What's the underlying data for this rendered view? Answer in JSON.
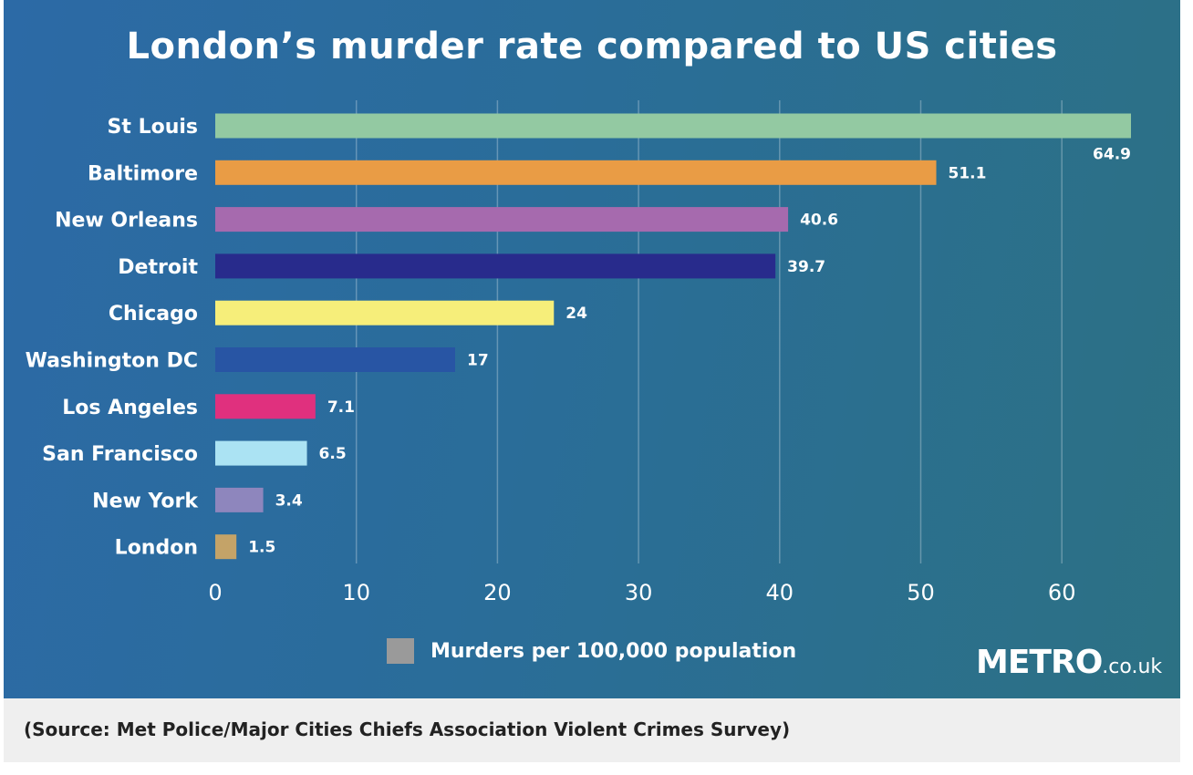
{
  "colors": {
    "background_start": "#2c6aa6",
    "background_end": "#2c7184",
    "text": "#ffffff",
    "legend_swatch": "#9a9a9a",
    "caption_background": "#efefef"
  },
  "chart_data": {
    "type": "bar",
    "orientation": "horizontal",
    "title": "London’s murder rate compared to US cities",
    "categories": [
      "St Louis",
      "Baltimore",
      "New Orleans",
      "Detroit",
      "Chicago",
      "Washington DC",
      "Los Angeles",
      "San Francisco",
      "New York",
      "London"
    ],
    "values": [
      64.9,
      51.1,
      40.6,
      39.7,
      24,
      17,
      7.1,
      6.5,
      3.4,
      1.5
    ],
    "value_labels": [
      "64.9",
      "51.1",
      "40.6",
      "39.7",
      "24",
      "17",
      "7.1",
      "6.5",
      "3.4",
      "1.5"
    ],
    "bar_colors": [
      "#93c9a2",
      "#e99c45",
      "#a66aae",
      "#282b8c",
      "#f6ee7a",
      "#2855a4",
      "#e0307e",
      "#abe3f3",
      "#8e86bd",
      "#c4a368"
    ],
    "xlim": [
      0,
      65
    ],
    "xticks": [
      0,
      10,
      20,
      30,
      40,
      50,
      60
    ],
    "grid": true,
    "legend": {
      "label": "Murders per 100,000 population",
      "position": "bottom-center"
    }
  },
  "branding": {
    "logo_brand": "METRO",
    "logo_suffix": ".co.uk"
  },
  "caption": {
    "source": "(Source: Met Police/Major Cities Chiefs Association Violent Crimes Survey)"
  }
}
